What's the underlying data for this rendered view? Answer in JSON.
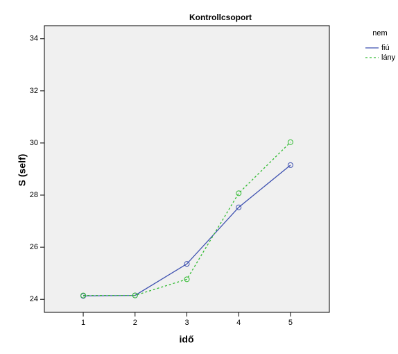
{
  "chart_data": {
    "type": "line",
    "title": "Kontrollcsoport",
    "x_label": "idő",
    "y_label": "S (self)",
    "x": [
      1,
      2,
      3,
      4,
      5
    ],
    "series": [
      {
        "name": "fiú",
        "color": "#3d50b0",
        "dash": false,
        "values": [
          24.13,
          24.15,
          25.36,
          27.53,
          29.15
        ]
      },
      {
        "name": "lány",
        "color": "#33bb33",
        "dash": true,
        "values": [
          24.15,
          24.15,
          24.77,
          28.07,
          30.03
        ]
      }
    ],
    "xlim": [
      0.25,
      5.75
    ],
    "xticks": [
      1,
      2,
      3,
      4,
      5
    ],
    "ylim": [
      23.5,
      34.5
    ],
    "yticks": [
      24,
      26,
      28,
      30,
      32,
      34
    ],
    "legend_title": "nem",
    "legend": "right"
  }
}
